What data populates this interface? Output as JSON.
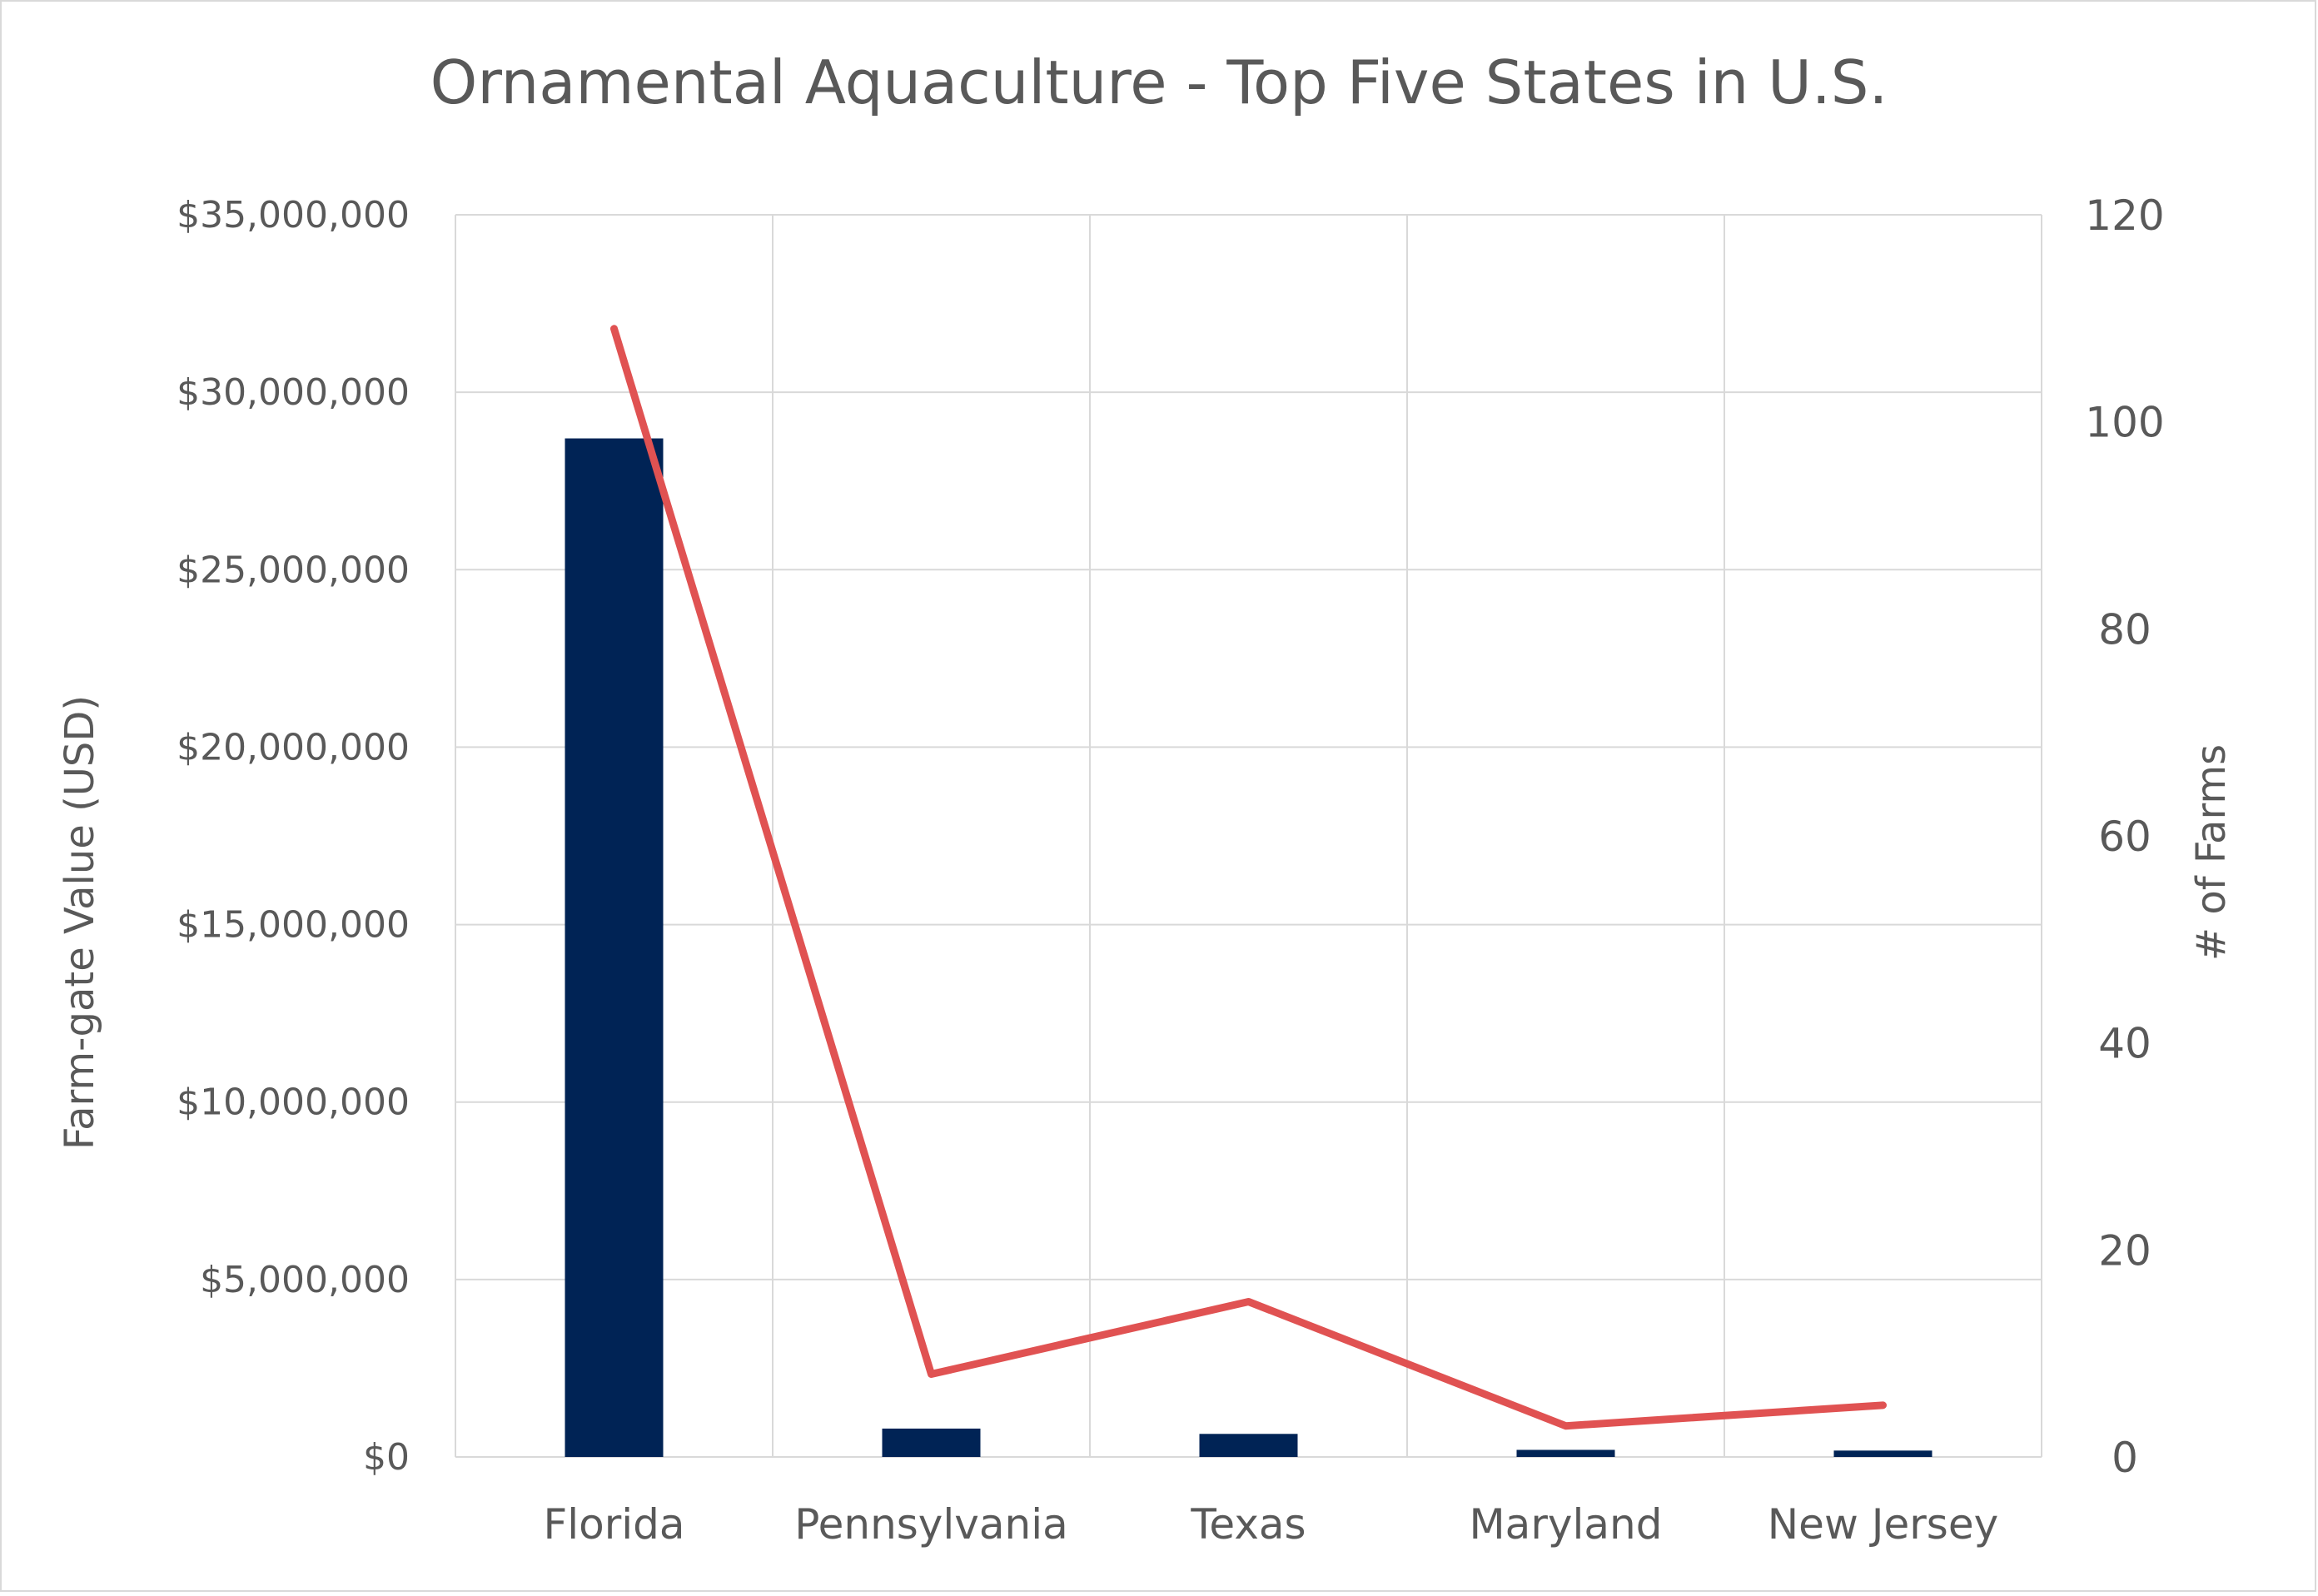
{
  "chart_data": {
    "type": "bar",
    "title": "Ornamental Aquaculture - Top Five States in U.S.",
    "xlabel": "",
    "ylabel": "Farm-gate Value (USD)",
    "y2label": "# of Farms",
    "categories": [
      "Florida",
      "Pennsylvania",
      "Texas",
      "Maryland",
      "New Jersey"
    ],
    "series": [
      {
        "type": "bar",
        "axis": "left",
        "values": [
          28700000,
          800000,
          650000,
          200000,
          180000
        ],
        "color": "#002355"
      },
      {
        "type": "line",
        "axis": "right",
        "values": [
          109,
          8,
          15,
          3,
          5
        ],
        "color": "#e05252"
      }
    ],
    "ylim": [
      0,
      35000000
    ],
    "y2lim": [
      0,
      120
    ],
    "y_ticks": [
      "$0",
      "$5,000,000",
      "$10,000,000",
      "$15,000,000",
      "$20,000,000",
      "$25,000,000",
      "$30,000,000",
      "$35,000,000"
    ],
    "y2_ticks": [
      "0",
      "20",
      "40",
      "60",
      "80",
      "100",
      "120"
    ],
    "grid": true,
    "legend": "none"
  }
}
